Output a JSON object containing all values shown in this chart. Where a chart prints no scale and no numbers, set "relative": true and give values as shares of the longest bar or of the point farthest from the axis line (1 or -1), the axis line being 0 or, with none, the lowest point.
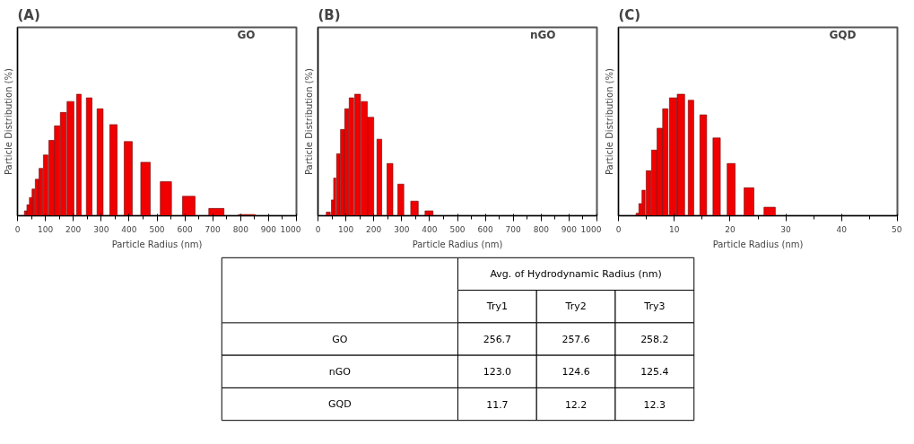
{
  "chart_data": [
    {
      "type": "bar",
      "title": "(A)",
      "xlabel": "Particle Radius (nm)",
      "ylabel": "Particle Distribution (%)",
      "annotations": [
        "GO"
      ],
      "relative": true,
      "xlim": [
        0,
        1000
      ],
      "xticks": [
        0,
        100,
        200,
        300,
        400,
        500,
        600,
        700,
        800,
        900,
        1000
      ],
      "x": [
        29,
        38,
        47,
        57,
        70,
        84,
        101,
        122,
        142,
        164,
        190,
        220,
        257,
        296,
        344,
        397,
        459,
        532,
        614,
        713,
        822
      ],
      "series": [
        {
          "color": "#f00000",
          "values": [
            0.04,
            0.09,
            0.15,
            0.22,
            0.3,
            0.39,
            0.5,
            0.62,
            0.74,
            0.85,
            0.94,
            1.0,
            0.97,
            0.88,
            0.75,
            0.61,
            0.44,
            0.28,
            0.16,
            0.06,
            0.01
          ]
        }
      ]
    },
    {
      "type": "bar",
      "title": "(B)",
      "xlabel": "Particle Radius (nm)",
      "ylabel": "Particle Distribution (%)",
      "annotations": [
        "nGO"
      ],
      "relative": true,
      "xlim": [
        0,
        1000
      ],
      "xticks": [
        0,
        100,
        200,
        300,
        400,
        500,
        600,
        700,
        800,
        900,
        1000
      ],
      "x": [
        37,
        52,
        60,
        73,
        88,
        103,
        120,
        142,
        166,
        189,
        220,
        258,
        297,
        346,
        398
      ],
      "series": [
        {
          "color": "#f00000",
          "values": [
            0.03,
            0.13,
            0.31,
            0.51,
            0.71,
            0.88,
            0.97,
            1.0,
            0.94,
            0.81,
            0.63,
            0.43,
            0.26,
            0.12,
            0.04
          ]
        }
      ]
    },
    {
      "type": "bar",
      "title": "(C)",
      "xlabel": "Particle Radius (nm)",
      "ylabel": "Particle Distribution (%)",
      "annotations": [
        "GQD"
      ],
      "relative": true,
      "xlim": [
        0,
        50
      ],
      "xticks": [
        0,
        10,
        20,
        30,
        40,
        50
      ],
      "x": [
        3.4,
        3.9,
        4.5,
        5.4,
        6.4,
        7.4,
        8.4,
        9.8,
        11.2,
        13.0,
        15.2,
        17.6,
        20.2,
        23.4,
        27.1
      ],
      "series": [
        {
          "color": "#f00000",
          "values": [
            0.02,
            0.1,
            0.21,
            0.37,
            0.54,
            0.72,
            0.88,
            0.97,
            1.0,
            0.95,
            0.83,
            0.64,
            0.43,
            0.23,
            0.07
          ]
        }
      ]
    },
    {
      "type": "other",
      "title": "Avg. of Hydrodynamic Radius (nm)",
      "categories": [
        "Try1",
        "Try2",
        "Try3"
      ],
      "y_categories": [
        "GO",
        "nGO",
        "GQD"
      ],
      "cell_labels": [
        [
          "256.7",
          "257.6",
          "258.2"
        ],
        [
          "123.0",
          "124.6",
          "125.4"
        ],
        [
          "11.7",
          "12.2",
          "12.3"
        ]
      ],
      "color": "#ffffff"
    }
  ]
}
